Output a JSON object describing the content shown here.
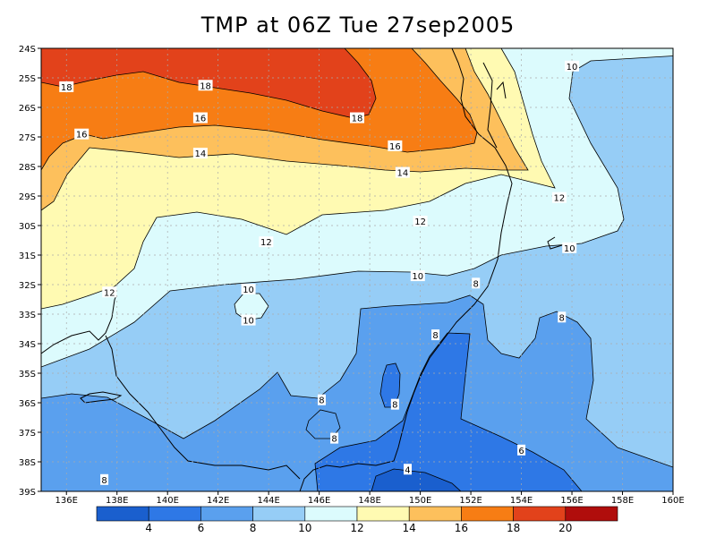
{
  "title": "TMP at 06Z Tue 27sep2005",
  "lat_labels": [
    "24S",
    "25S",
    "26S",
    "27S",
    "28S",
    "29S",
    "30S",
    "31S",
    "32S",
    "33S",
    "34S",
    "35S",
    "36S",
    "37S",
    "38S",
    "39S"
  ],
  "lon_labels": [
    "136E",
    "138E",
    "140E",
    "142E",
    "144E",
    "146E",
    "148E",
    "150E",
    "152E",
    "154E",
    "156E",
    "158E",
    "160E"
  ],
  "contour_labels": [
    {
      "text": "18",
      "lon": 136.0,
      "lat": -25.3
    },
    {
      "text": "18",
      "lon": 141.5,
      "lat": -25.25
    },
    {
      "text": "18",
      "lon": 147.5,
      "lat": -26.35
    },
    {
      "text": "16",
      "lon": 136.6,
      "lat": -26.9
    },
    {
      "text": "16",
      "lon": 141.3,
      "lat": -26.35
    },
    {
      "text": "16",
      "lon": 149.0,
      "lat": -27.3
    },
    {
      "text": "14",
      "lon": 141.3,
      "lat": -27.55
    },
    {
      "text": "14",
      "lon": 149.3,
      "lat": -28.2
    },
    {
      "text": "12",
      "lon": 143.9,
      "lat": -30.55
    },
    {
      "text": "12",
      "lon": 150.0,
      "lat": -29.85
    },
    {
      "text": "12",
      "lon": 155.5,
      "lat": -29.05
    },
    {
      "text": "12",
      "lon": 137.7,
      "lat": -32.25
    },
    {
      "text": "10",
      "lon": 156.0,
      "lat": -24.6
    },
    {
      "text": "10",
      "lon": 155.9,
      "lat": -30.75
    },
    {
      "text": "10",
      "lon": 149.9,
      "lat": -31.7
    },
    {
      "text": "10",
      "lon": 143.2,
      "lat": -32.15
    },
    {
      "text": "10",
      "lon": 143.2,
      "lat": -33.2
    },
    {
      "text": "8",
      "lon": 152.2,
      "lat": -31.95
    },
    {
      "text": "8",
      "lon": 155.6,
      "lat": -33.1
    },
    {
      "text": "8",
      "lon": 150.6,
      "lat": -33.7
    },
    {
      "text": "8",
      "lon": 146.1,
      "lat": -35.9
    },
    {
      "text": "8",
      "lon": 149.0,
      "lat": -36.05
    },
    {
      "text": "8",
      "lon": 146.6,
      "lat": -37.2
    },
    {
      "text": "8",
      "lon": 137.5,
      "lat": -38.6
    },
    {
      "text": "6",
      "lon": 154.0,
      "lat": -37.6
    },
    {
      "text": "4",
      "lon": 149.5,
      "lat": -38.25
    }
  ],
  "colorbar": {
    "labels": [
      "4",
      "6",
      "8",
      "10",
      "12",
      "14",
      "16",
      "18",
      "20"
    ],
    "colors": [
      "#1a5fce",
      "#2e78e6",
      "#5aa0ee",
      "#96cdf6",
      "#dcfbfd",
      "#fffab2",
      "#fdc05c",
      "#f77d14",
      "#e2421b",
      "#b00d0c"
    ]
  },
  "fill_colors": {
    "t4": "#1a5fce",
    "t4_6": "#2e78e6",
    "t6_8": "#5aa0ee",
    "t8_10": "#96cdf6",
    "t10_12": "#dcfbfd",
    "t12_14": "#fffab2",
    "t14_16": "#fdc05c",
    "t16_18": "#f77d14",
    "t18_20": "#e2421b"
  }
}
